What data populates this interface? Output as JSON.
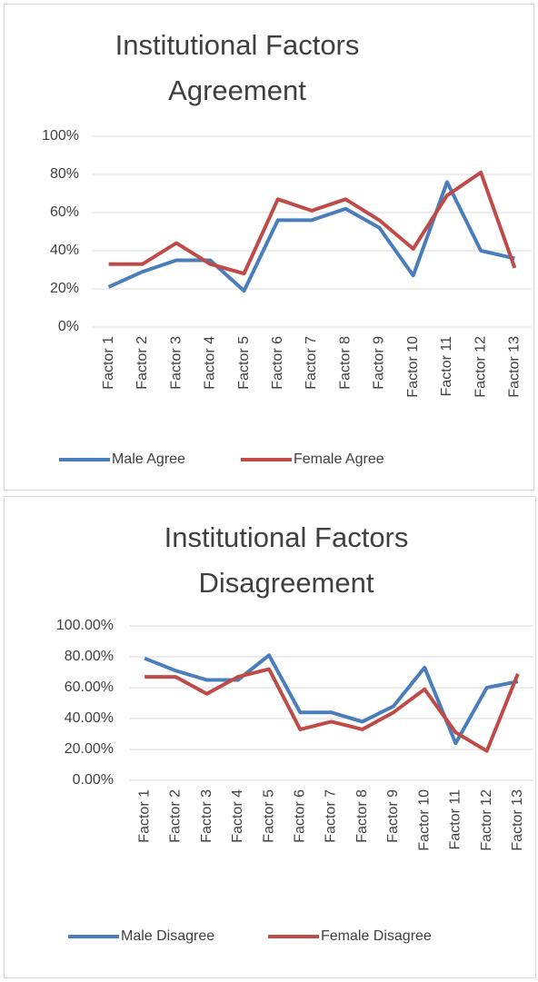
{
  "chart_data": [
    {
      "type": "line",
      "title": "Institutional Factors Agreement",
      "categories": [
        "Factor 1",
        "Factor 2",
        "Factor 3",
        "Factor 4",
        "Factor 5",
        "Factor 6",
        "Factor 7",
        "Factor 8",
        "Factor 9",
        "Factor 10",
        "Factor 11",
        "Factor 12",
        "Factor 13"
      ],
      "series": [
        {
          "name": "Male Agree",
          "color": "#4a7ebb",
          "values": [
            21,
            29,
            35,
            35,
            19,
            56,
            56,
            62,
            52,
            27,
            76,
            40,
            36
          ]
        },
        {
          "name": "Female Agree",
          "color": "#be4b48",
          "values": [
            33,
            33,
            44,
            33,
            28,
            67,
            61,
            67,
            56,
            41,
            69,
            81,
            31
          ]
        }
      ],
      "ylim": [
        0,
        100
      ],
      "yticks": [
        {
          "value": 0,
          "label": "0%"
        },
        {
          "value": 20,
          "label": "20%"
        },
        {
          "value": 40,
          "label": "40%"
        },
        {
          "value": 60,
          "label": "60%"
        },
        {
          "value": 80,
          "label": "80%"
        },
        {
          "value": 100,
          "label": "100%"
        }
      ],
      "grid": true,
      "legend": "bottom"
    },
    {
      "type": "line",
      "title": "Institutional Factors Disagreement",
      "categories": [
        "Factor 1",
        "Factor 2",
        "Factor 3",
        "Factor 4",
        "Factor 5",
        "Factor 6",
        "Factor 7",
        "Factor 8",
        "Factor 9",
        "Factor 10",
        "Factor 11",
        "Factor 12",
        "Factor 13"
      ],
      "series": [
        {
          "name": "Male Disagree",
          "color": "#4a7ebb",
          "values": [
            79,
            71,
            65,
            65,
            81,
            44,
            44,
            38,
            48,
            73,
            24,
            60,
            64
          ]
        },
        {
          "name": "Female Disagree",
          "color": "#be4b48",
          "values": [
            67,
            67,
            56,
            67,
            72,
            33,
            38,
            33,
            44,
            59,
            31,
            19,
            69
          ]
        }
      ],
      "ylim": [
        0,
        100
      ],
      "yticks": [
        {
          "value": 0,
          "label": "0.00%"
        },
        {
          "value": 20,
          "label": "20.00%"
        },
        {
          "value": 40,
          "label": "40.00%"
        },
        {
          "value": 60,
          "label": "60.00%"
        },
        {
          "value": 80,
          "label": "80.00%"
        },
        {
          "value": 100,
          "label": "100.00%"
        }
      ],
      "grid": true,
      "legend": "bottom"
    }
  ]
}
